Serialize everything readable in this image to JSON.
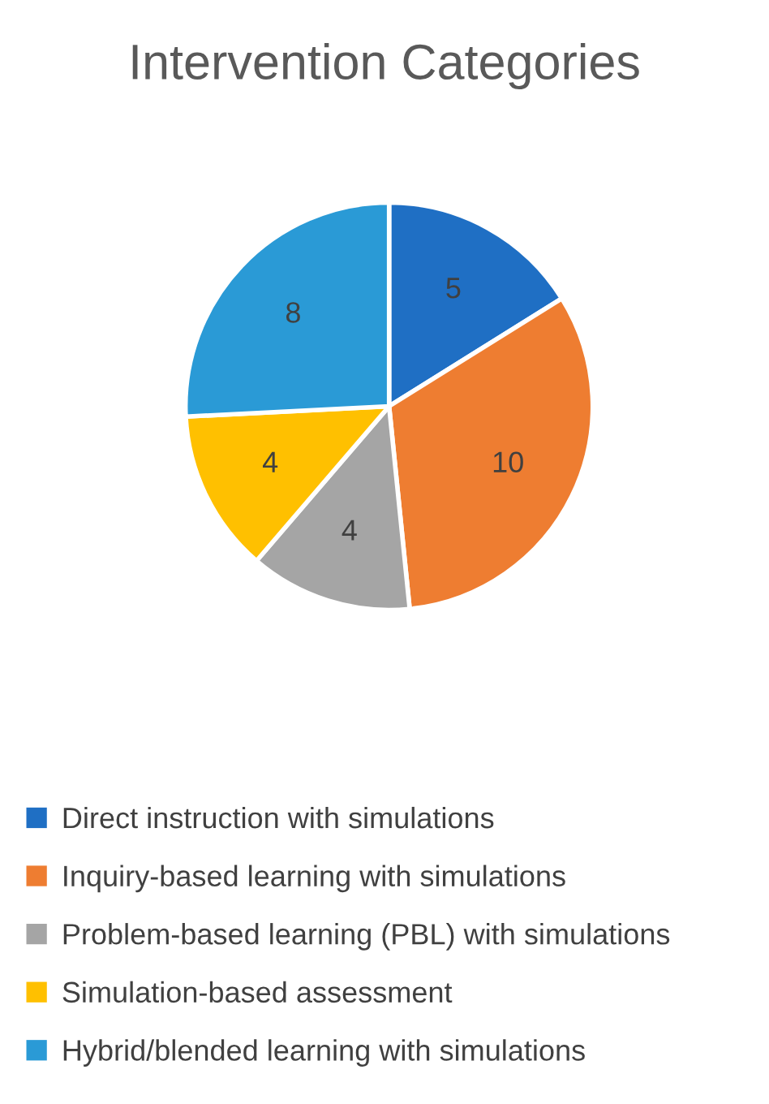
{
  "chart_data": {
    "type": "pie",
    "title": "Intervention Categories",
    "categories": [
      "Direct instruction with simulations",
      "Inquiry-based learning with simulations",
      "Problem-based learning (PBL) with simulations",
      "Simulation-based assessment",
      "Hybrid/blended learning with simulations"
    ],
    "values": [
      5,
      10,
      4,
      4,
      8
    ],
    "colors": [
      "#1f6fc4",
      "#ee7d31",
      "#a5a5a5",
      "#ffc000",
      "#2a9ad6"
    ],
    "data_labels": true,
    "legend": "bottom"
  }
}
